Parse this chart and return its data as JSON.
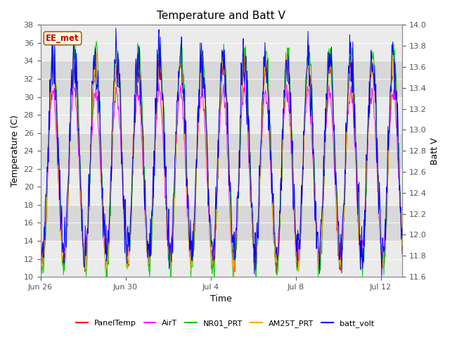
{
  "title": "Temperature and Batt V",
  "xlabel": "Time",
  "ylabel_left": "Temperature (C)",
  "ylabel_right": "Batt V",
  "ylim_left": [
    10,
    38
  ],
  "ylim_right": [
    11.6,
    14.0
  ],
  "n_days": 17,
  "xtick_positions": [
    0,
    4,
    8,
    12,
    16
  ],
  "xtick_labels": [
    "Jun 26",
    "Jun 30",
    "Jul 4",
    "Jul 8",
    "Jul 12"
  ],
  "site_label": "EE_met",
  "legend_entries": [
    "PanelTemp",
    "AirT",
    "NR01_PRT",
    "AM25T_PRT",
    "batt_volt"
  ],
  "legend_colors": [
    "#ff0000",
    "#ff00ff",
    "#00cc00",
    "#ffaa00",
    "#0000ff"
  ],
  "line_colors": {
    "PanelTemp": "#ff0000",
    "AirT": "#ff00ff",
    "NR01_PRT": "#00cc00",
    "AM25T_PRT": "#ffaa00",
    "batt_volt": "#0000ff"
  },
  "background_color": "#ffffff",
  "band_light": "#ebebeb",
  "band_dark": "#d8d8d8",
  "band_edges": [
    10,
    14,
    18,
    22,
    26,
    30,
    34,
    38
  ],
  "title_fontsize": 11,
  "axis_fontsize": 9,
  "tick_fontsize": 8,
  "label_fontsize": 9
}
